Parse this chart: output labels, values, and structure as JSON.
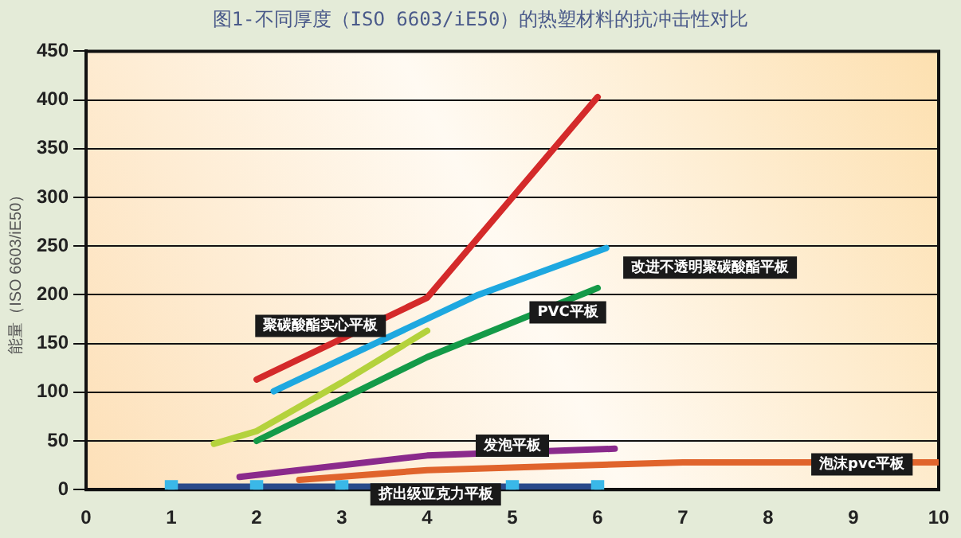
{
  "chart_data": {
    "type": "line",
    "title": "图1-不同厚度（ISO 6603/iE50）的热塑材料的抗冲击性对比",
    "ylabel": "能量（ISO 6603/iE50）",
    "xlim": [
      0,
      10
    ],
    "xticks": [
      0,
      1,
      2,
      3,
      4,
      5,
      6,
      7,
      8,
      9,
      10
    ],
    "ylim": [
      0,
      450
    ],
    "yticks": [
      0,
      50,
      100,
      150,
      200,
      250,
      300,
      350,
      400,
      450
    ],
    "grid": "y",
    "legend": false,
    "marker": "none",
    "line_style": "solid",
    "series": [
      {
        "name": "聚碳酸酯实心平板",
        "color": "#d42a2a",
        "x": [
          2,
          4,
          6
        ],
        "values": [
          113,
          197,
          403
        ]
      },
      {
        "name": "改进不透明聚碳酸酯平板",
        "color": "#1ea8e0",
        "x": [
          2.2,
          4.6,
          6.1
        ],
        "values": [
          101,
          200,
          248
        ]
      },
      {
        "name": "PVC平板",
        "color": "#149a48",
        "x": [
          2,
          4,
          6
        ],
        "values": [
          50,
          136,
          207
        ]
      },
      {
        "color": "#b4d23c",
        "x": [
          1.5,
          2,
          3,
          4
        ],
        "values": [
          47,
          60,
          110,
          163
        ]
      },
      {
        "name": "发泡平板",
        "color": "#8a2a8c",
        "x": [
          1.8,
          4,
          6.2
        ],
        "values": [
          13,
          35,
          42
        ]
      },
      {
        "name": "泡沫pvc平板",
        "color": "#e0642c",
        "x": [
          2.5,
          4,
          7,
          10
        ],
        "values": [
          10,
          20,
          28,
          28
        ]
      },
      {
        "name": "挤出级亚克力平板",
        "color": "#2a4a8a",
        "marker": "square",
        "x": [
          1,
          2,
          3,
          4,
          5,
          6
        ],
        "values": [
          3,
          3,
          3,
          null,
          3,
          3
        ]
      }
    ]
  }
}
